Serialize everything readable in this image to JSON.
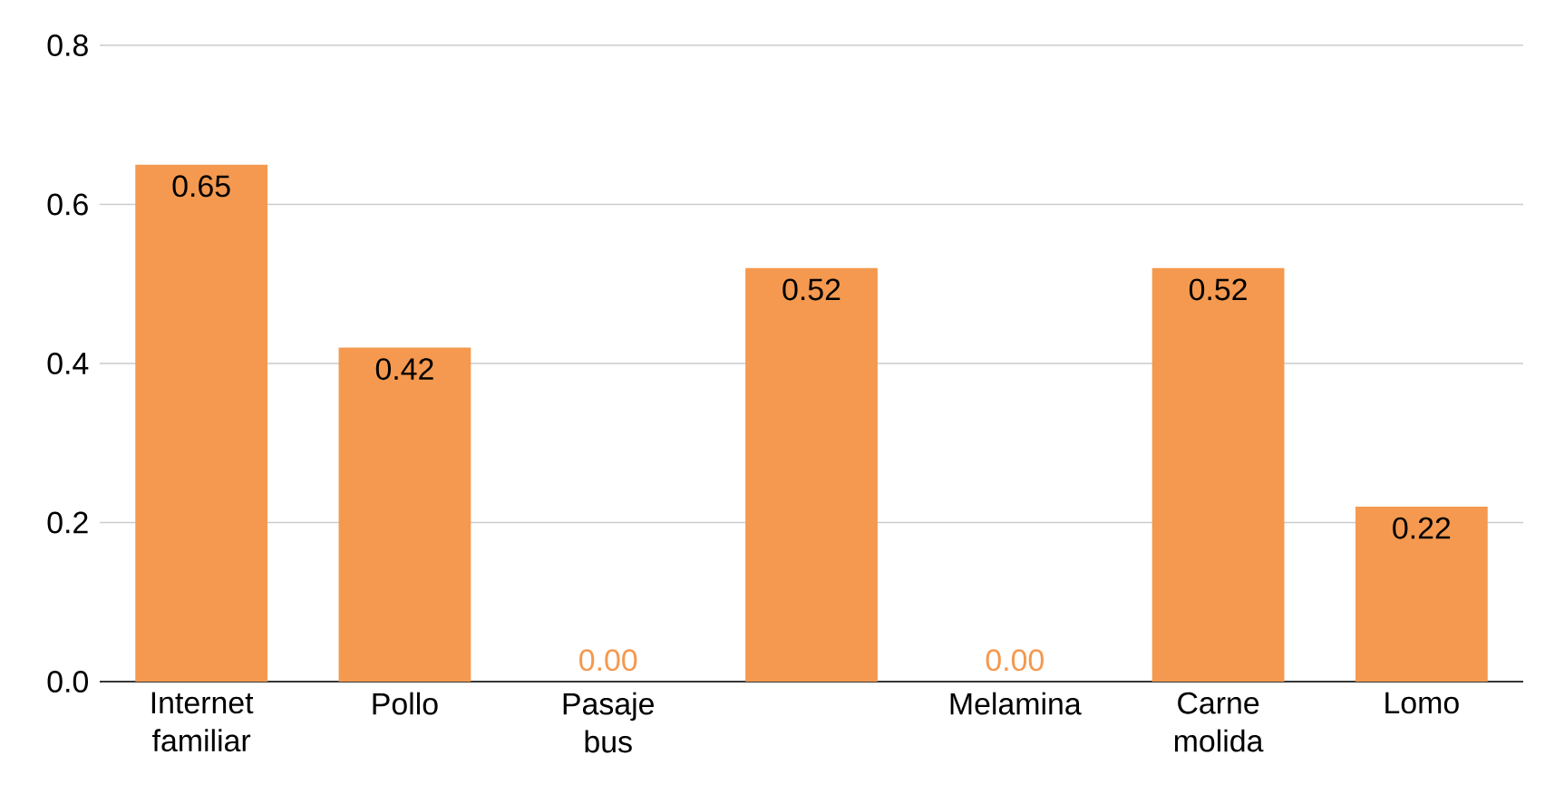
{
  "chart_data": {
    "type": "bar",
    "categories": [
      "Internet familiar",
      "Pollo",
      "Pasaje bus",
      null,
      "Melamina",
      "Carne molida",
      "Lomo"
    ],
    "values": [
      0.65,
      0.42,
      0.0,
      0.52,
      0.0,
      0.52,
      0.22
    ],
    "value_labels": [
      "0.65",
      "0.42",
      "0.00",
      "0.52",
      "0.00",
      "0.52",
      "0.22"
    ],
    "color": "#f4994f",
    "ylim": [
      0,
      0.8
    ],
    "yticks": [
      {
        "value": 0,
        "label": "0.0"
      },
      {
        "value": 0.2,
        "label": "0.2"
      },
      {
        "value": 0.4,
        "label": "0.4"
      },
      {
        "value": 0.6,
        "label": "0.6"
      },
      {
        "value": 0.8,
        "label": "0.8"
      }
    ],
    "grid": "y"
  }
}
